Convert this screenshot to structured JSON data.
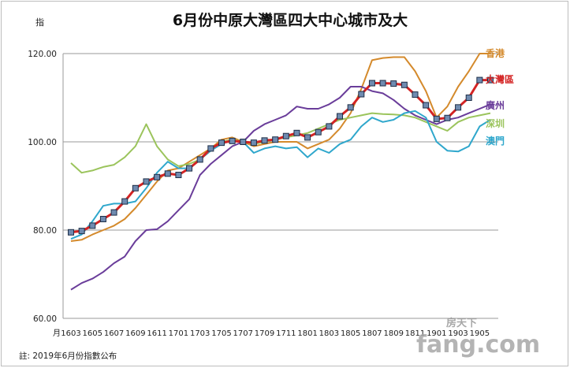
{
  "chart_data": {
    "type": "line",
    "title": "6月份中原大灣區四大中心城市及大",
    "ylabel": "指",
    "xlabel_prefix": "月",
    "ylim": [
      60,
      120
    ],
    "yticks": [
      "60.00",
      "80.00",
      "100.00",
      "120.00"
    ],
    "ytick_values": [
      60,
      80,
      100,
      120
    ],
    "xtick_labels": [
      "1603",
      "1605",
      "1607",
      "1609",
      "1611",
      "1701",
      "1703",
      "1705",
      "1707",
      "1709",
      "1711",
      "1801",
      "1803",
      "1805",
      "1807",
      "1809",
      "1811",
      "1901",
      "1903",
      "1905"
    ],
    "x_months": [
      "1603",
      "1604",
      "1605",
      "1606",
      "1607",
      "1608",
      "1609",
      "1610",
      "1611",
      "1612",
      "1701",
      "1702",
      "1703",
      "1704",
      "1705",
      "1706",
      "1707",
      "1708",
      "1709",
      "1710",
      "1711",
      "1712",
      "1801",
      "1802",
      "1803",
      "1804",
      "1805",
      "1806",
      "1807",
      "1808",
      "1809",
      "1810",
      "1811",
      "1812",
      "1901",
      "1902",
      "1903",
      "1904",
      "1905",
      "1906"
    ],
    "series": [
      {
        "name": "香港",
        "color": "#d48a2c",
        "values": [
          77.5,
          77.8,
          79,
          80,
          81,
          82.5,
          85,
          88,
          91,
          93.5,
          94,
          95.5,
          97,
          98.5,
          100.5,
          101,
          100,
          99,
          99.5,
          100,
          100,
          100,
          98.5,
          99.5,
          100.5,
          103,
          106.5,
          112,
          118.5,
          119,
          119.2,
          119.2,
          116,
          111.5,
          105.5,
          108,
          112.5,
          116,
          120,
          120
        ]
      },
      {
        "name": "大灣區",
        "color": "#d42424",
        "markers": true,
        "values": [
          79.5,
          79.8,
          81,
          82.5,
          84,
          86.5,
          89.5,
          91,
          92,
          92.8,
          92.5,
          94,
          96,
          98.5,
          99.8,
          100.2,
          100,
          99.8,
          100.3,
          100.5,
          101.3,
          102,
          101,
          102.2,
          103.5,
          105.8,
          107.8,
          110.8,
          113.3,
          113.3,
          113.2,
          112.9,
          110.7,
          108.3,
          105.2,
          105.4,
          107.8,
          110,
          114,
          114
        ]
      },
      {
        "name": "廣州",
        "color": "#6a3d9a",
        "values": [
          66.5,
          68,
          69,
          70.5,
          72.5,
          74,
          77.5,
          80,
          80.2,
          82,
          84.5,
          87,
          92.5,
          95,
          97,
          99,
          100,
          102.5,
          104,
          105,
          106,
          108,
          107.5,
          107.5,
          108.5,
          110,
          112.5,
          112.5,
          111.5,
          111,
          109.5,
          107.5,
          106,
          105,
          104,
          105,
          105.5,
          106.5,
          107.5,
          108.5
        ]
      },
      {
        "name": "深圳",
        "color": "#9bc45c",
        "values": [
          95.2,
          93,
          93.5,
          94.3,
          94.8,
          96.5,
          99,
          104,
          99,
          96,
          94.5,
          95,
          96,
          98,
          100,
          100.5,
          100,
          99.5,
          100,
          100.5,
          101,
          101.5,
          102,
          103,
          104,
          105,
          105.5,
          106,
          106.5,
          106.3,
          106.2,
          106,
          105.5,
          104.5,
          103.5,
          102.5,
          104.5,
          105.5,
          106,
          106.5
        ]
      },
      {
        "name": "澳門",
        "color": "#2fa7cc",
        "values": [
          78,
          79,
          82,
          85.5,
          86,
          86,
          86.5,
          89.5,
          93,
          95.5,
          94,
          94,
          96,
          98,
          99.5,
          100.3,
          100,
          97.5,
          98.5,
          99,
          98.5,
          98.8,
          96.5,
          98.5,
          97.5,
          99.5,
          100.5,
          103.5,
          105.5,
          104.5,
          105,
          106.5,
          107,
          105.5,
          100,
          98,
          97.8,
          99,
          103.5,
          105
        ]
      }
    ]
  },
  "note": "註: 2019年6月份指數公布",
  "watermark": {
    "cn": "房天下",
    "en": "fang.com"
  }
}
